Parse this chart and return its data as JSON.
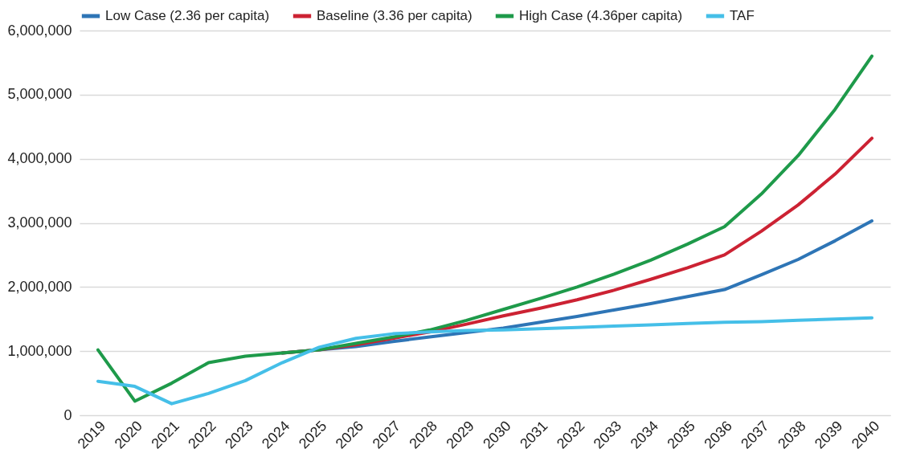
{
  "chart_data": {
    "type": "line",
    "categories": [
      "2019",
      "2020",
      "2021",
      "2022",
      "2023",
      "2024",
      "2025",
      "2026",
      "2027",
      "2028",
      "2029",
      "2030",
      "2031",
      "2032",
      "2033",
      "2034",
      "2035",
      "2036",
      "2037",
      "2038",
      "2039",
      "2040"
    ],
    "series": [
      {
        "name": "Low Case (2.36 per capita)",
        "color": "#2e75b6",
        "values": [
          null,
          null,
          null,
          null,
          null,
          970000,
          1020000,
          1070000,
          1150000,
          1220000,
          1290000,
          1360000,
          1450000,
          1540000,
          1640000,
          1740000,
          1850000,
          1960000,
          2190000,
          2430000,
          2720000,
          3030000
        ]
      },
      {
        "name": "Baseline (3.36 per capita)",
        "color": "#cc2233",
        "values": [
          null,
          null,
          null,
          null,
          null,
          970000,
          1020000,
          1100000,
          1200000,
          1300000,
          1420000,
          1550000,
          1670000,
          1800000,
          1950000,
          2120000,
          2300000,
          2500000,
          2870000,
          3280000,
          3760000,
          4320000
        ]
      },
      {
        "name": "High Case (4.36per capita)",
        "color": "#1e9a4a",
        "values": [
          1020000,
          220000,
          500000,
          820000,
          920000,
          970000,
          1020000,
          1120000,
          1220000,
          1330000,
          1480000,
          1650000,
          1820000,
          2000000,
          2200000,
          2420000,
          2670000,
          2940000,
          3450000,
          4050000,
          4770000,
          5600000
        ]
      },
      {
        "name": "TAF",
        "color": "#45bfe8",
        "values": [
          530000,
          450000,
          180000,
          340000,
          540000,
          820000,
          1060000,
          1200000,
          1270000,
          1300000,
          1320000,
          1330000,
          1350000,
          1370000,
          1390000,
          1410000,
          1430000,
          1450000,
          1460000,
          1480000,
          1500000,
          1520000
        ]
      }
    ],
    "ylim": [
      0,
      6000000
    ],
    "yticks": [
      0,
      {
        "value": 1000000,
        "label": "1,000,000"
      },
      {
        "value": 2000000,
        "label": "2,000,000"
      },
      {
        "value": 3000000,
        "label": "3,000,000"
      },
      {
        "value": 4000000,
        "label": "4,000,000"
      },
      {
        "value": 5000000,
        "label": "5,000,000"
      },
      {
        "value": 6000000,
        "label": "6,000,000"
      }
    ],
    "grid": "y",
    "legend": "top",
    "marker": "none",
    "line_style": "solid"
  }
}
